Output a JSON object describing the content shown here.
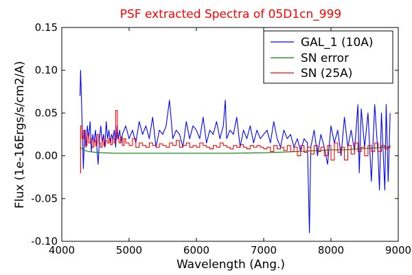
{
  "chart_data": {
    "type": "line",
    "title": "PSF extracted Spectra of 05D1cn_999",
    "xlabel": "Wavelength (Ang.)",
    "ylabel": "Flux (1e-16Ergs/s/cm2/A)",
    "xlim": [
      4000,
      9000
    ],
    "ylim": [
      -0.1,
      0.15
    ],
    "xticks": [
      4000,
      5000,
      6000,
      7000,
      8000,
      9000
    ],
    "xtick_labels": [
      "4000",
      "5000",
      "6000",
      "7000",
      "8000",
      "9000"
    ],
    "yticks": [
      -0.1,
      -0.05,
      0.0,
      0.05,
      0.1,
      0.15
    ],
    "ytick_labels": [
      "-0.10",
      "-0.05",
      "0.00",
      "0.05",
      "0.10",
      "0.15"
    ],
    "grid": false,
    "legend": "top-right",
    "colors": {
      "title": "#ff0000",
      "frame": "#000000"
    },
    "series": [
      {
        "name": "GAL_1 (10A)",
        "color": "#0000ff",
        "style": "line",
        "x": [
          4270,
          4280,
          4300,
          4320,
          4340,
          4360,
          4380,
          4400,
          4420,
          4440,
          4460,
          4480,
          4500,
          4520,
          4540,
          4560,
          4580,
          4600,
          4620,
          4640,
          4660,
          4680,
          4700,
          4720,
          4740,
          4760,
          4780,
          4800,
          4820,
          4840,
          4860,
          4880,
          4900,
          4950,
          5000,
          5050,
          5100,
          5150,
          5200,
          5250,
          5300,
          5350,
          5400,
          5450,
          5500,
          5550,
          5600,
          5650,
          5700,
          5750,
          5800,
          5850,
          5900,
          5950,
          6000,
          6050,
          6100,
          6150,
          6200,
          6250,
          6300,
          6350,
          6400,
          6430,
          6450,
          6500,
          6550,
          6600,
          6650,
          6700,
          6750,
          6800,
          6850,
          6900,
          6950,
          7000,
          7050,
          7100,
          7150,
          7200,
          7250,
          7300,
          7350,
          7400,
          7450,
          7500,
          7550,
          7600,
          7650,
          7680,
          7700,
          7750,
          7800,
          7850,
          7900,
          7950,
          8000,
          8050,
          8100,
          8150,
          8200,
          8250,
          8300,
          8350,
          8400,
          8420,
          8450,
          8500,
          8550,
          8600,
          8650,
          8700,
          8720,
          8750,
          8800,
          8820,
          8850,
          8880
        ],
        "y": [
          0.07,
          0.1,
          0.045,
          -0.015,
          0.03,
          0.01,
          0.035,
          0.02,
          0.04,
          0.005,
          0.025,
          0.015,
          0.03,
          0.01,
          -0.01,
          0.02,
          0.035,
          0.015,
          0.025,
          0.01,
          0.04,
          0.02,
          0.03,
          0.015,
          0.025,
          0.02,
          0.03,
          0.01,
          0.035,
          0.02,
          0.03,
          0.015,
          0.025,
          0.035,
          0.02,
          0.03,
          0.015,
          0.04,
          0.025,
          0.035,
          0.02,
          0.045,
          0.01,
          0.03,
          0.025,
          0.035,
          0.065,
          0.02,
          0.03,
          0.025,
          0.01,
          0.04,
          0.02,
          0.035,
          0.03,
          0.02,
          0.045,
          0.015,
          0.03,
          0.025,
          0.04,
          0.02,
          0.035,
          0.065,
          0.02,
          0.03,
          0.025,
          0.045,
          0.01,
          0.03,
          0.02,
          0.035,
          0.015,
          0.03,
          0.02,
          0.025,
          0.03,
          0.015,
          0.04,
          0.02,
          0.01,
          0.03,
          0.02,
          0.025,
          0.01,
          0.02,
          0.005,
          0.02,
          0.015,
          -0.09,
          0.01,
          0.03,
          0.0,
          0.025,
          0.01,
          -0.01,
          0.035,
          0.015,
          0.03,
          0.0,
          0.045,
          0.01,
          0.03,
          0.005,
          0.06,
          -0.02,
          0.055,
          0.01,
          0.05,
          -0.03,
          0.06,
          0.0,
          -0.04,
          0.05,
          -0.04,
          0.06,
          -0.03,
          0.05
        ]
      },
      {
        "name": "SN error",
        "color": "#008000",
        "style": "line",
        "x": [
          4270,
          4300,
          4350,
          4400,
          4500,
          4600,
          4800,
          5000,
          5500,
          6000,
          6500,
          7000,
          7200,
          7500,
          7800,
          8000,
          8200,
          8400,
          8600,
          8800,
          8880
        ],
        "y": [
          0.01,
          0.008,
          0.006,
          0.005,
          0.004,
          0.0035,
          0.003,
          0.003,
          0.003,
          0.003,
          0.003,
          0.0035,
          0.004,
          0.005,
          0.006,
          0.007,
          0.007,
          0.008,
          0.009,
          0.01,
          0.011
        ]
      },
      {
        "name": "SN (25A)",
        "color": "#ff0000",
        "style": "step",
        "x": [
          4270,
          4280,
          4300,
          4325,
          4350,
          4375,
          4400,
          4425,
          4450,
          4475,
          4500,
          4525,
          4550,
          4575,
          4600,
          4625,
          4650,
          4675,
          4700,
          4725,
          4750,
          4775,
          4800,
          4825,
          4850,
          4875,
          4900,
          4925,
          4950,
          5000,
          5050,
          5100,
          5150,
          5200,
          5250,
          5300,
          5350,
          5400,
          5450,
          5500,
          5550,
          5600,
          5650,
          5700,
          5750,
          5800,
          5850,
          5900,
          5950,
          6000,
          6050,
          6100,
          6150,
          6200,
          6250,
          6300,
          6350,
          6400,
          6450,
          6500,
          6550,
          6600,
          6650,
          6700,
          6750,
          6800,
          6850,
          6900,
          6950,
          7000,
          7050,
          7100,
          7150,
          7200,
          7250,
          7300,
          7350,
          7400,
          7450,
          7500,
          7550,
          7600,
          7650,
          7700,
          7750,
          7800,
          7850,
          7900,
          7950,
          8000,
          8050,
          8100,
          8150,
          8200,
          8250,
          8300,
          8350,
          8400,
          8450,
          8500,
          8550,
          8600,
          8650,
          8700,
          8750,
          8800,
          8850,
          8880
        ],
        "y": [
          -0.02,
          0.035,
          0.02,
          0.03,
          0.012,
          0.025,
          0.015,
          0.02,
          0.01,
          0.018,
          0.012,
          0.025,
          0.015,
          0.01,
          0.02,
          0.012,
          0.018,
          0.015,
          0.02,
          0.013,
          0.02,
          0.015,
          0.053,
          0.02,
          0.015,
          0.022,
          0.012,
          0.02,
          0.015,
          0.012,
          0.02,
          0.01,
          0.015,
          0.012,
          0.01,
          0.015,
          0.012,
          0.01,
          0.014,
          0.012,
          0.01,
          0.015,
          0.012,
          0.018,
          0.01,
          0.012,
          0.015,
          0.01,
          0.012,
          0.01,
          0.015,
          0.012,
          0.01,
          0.008,
          0.012,
          0.01,
          0.015,
          0.012,
          0.01,
          0.008,
          0.012,
          0.01,
          0.013,
          0.01,
          0.008,
          0.012,
          0.01,
          0.012,
          0.01,
          0.008,
          0.01,
          0.005,
          0.012,
          0.008,
          0.01,
          0.006,
          0.012,
          0.005,
          0.01,
          0.0,
          0.012,
          0.004,
          0.01,
          0.002,
          0.012,
          0.005,
          0.01,
          0.0,
          0.012,
          -0.005,
          0.015,
          0.004,
          0.01,
          -0.005,
          0.012,
          0.002,
          0.015,
          0.005,
          0.01,
          0.0,
          0.012,
          0.005,
          0.015,
          0.005,
          0.012,
          0.008,
          0.01,
          0.012
        ]
      }
    ]
  }
}
